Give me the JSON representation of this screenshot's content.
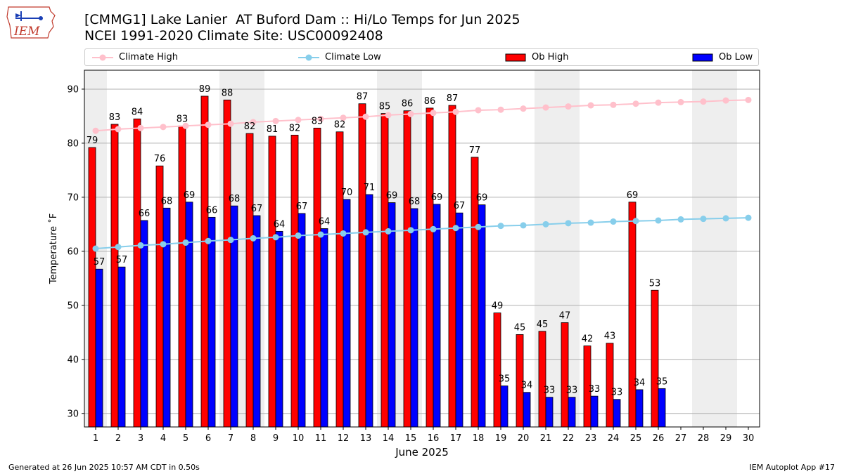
{
  "header": {
    "title_line1": "[CMMG1] Lake Lanier  AT Buford Dam :: Hi/Lo Temps for Jun 2025",
    "title_line2": "NCEI 1991-2020 Climate Site: USC00092408"
  },
  "logo": {
    "text": "IEM"
  },
  "footer": {
    "generated": "Generated at 26 Jun 2025 10:57 AM CDT in 0.50s",
    "app": "IEM Autoplot App #17"
  },
  "chart_data": {
    "type": "bar",
    "xlabel": "June 2025",
    "ylabel": "Temperature ˚F",
    "ylim": [
      27.5,
      93.5
    ],
    "yticks": [
      30,
      40,
      50,
      60,
      70,
      80,
      90
    ],
    "days": [
      1,
      2,
      3,
      4,
      5,
      6,
      7,
      8,
      9,
      10,
      11,
      12,
      13,
      14,
      15,
      16,
      17,
      18,
      19,
      20,
      21,
      22,
      23,
      24,
      25,
      26,
      27,
      28,
      29,
      30
    ],
    "weekend_days": [
      1,
      7,
      8,
      14,
      15,
      21,
      22,
      28,
      29
    ],
    "grid": "horizontal",
    "legend": [
      "Climate High",
      "Climate Low",
      "Ob High",
      "Ob Low"
    ],
    "colors": {
      "ob_high": "#ff0000",
      "ob_low": "#0000ff",
      "climate_high": "#ffc0cb",
      "climate_low": "#87ceeb",
      "weekend_shade": "#eeeeee",
      "grid": "#b0b0b0"
    },
    "series": [
      {
        "name": "Ob High",
        "values": [
          79.2,
          83.5,
          84.5,
          75.8,
          83.2,
          88.7,
          88.0,
          81.8,
          81.3,
          81.5,
          82.8,
          82.1,
          87.3,
          85.5,
          86.0,
          86.5,
          87.0,
          77.4,
          48.6,
          44.6,
          45.2,
          46.8,
          42.5,
          43.0,
          69.1,
          52.8
        ],
        "labels": [
          "79",
          "83",
          "84",
          "76",
          "83",
          "89",
          "88",
          "82",
          "81",
          "82",
          "83",
          "82",
          "87",
          "85",
          "86",
          "86",
          "87",
          "77",
          "49",
          "45",
          "45",
          "47",
          "42",
          "43",
          "69",
          "53"
        ]
      },
      {
        "name": "Ob Low",
        "values": [
          56.7,
          57.1,
          65.7,
          68.0,
          69.1,
          66.3,
          68.4,
          66.6,
          63.7,
          67.0,
          64.2,
          69.6,
          70.5,
          69.0,
          67.9,
          68.7,
          67.1,
          68.6,
          35.1,
          33.9,
          33.0,
          33.0,
          33.2,
          32.6,
          34.4,
          34.6
        ],
        "labels": [
          "57",
          "57",
          "66",
          "68",
          "69",
          "66",
          "68",
          "67",
          "64",
          "67",
          "64",
          "70",
          "71",
          "69",
          "68",
          "69",
          "67",
          "69",
          "35",
          "34",
          "33",
          "33",
          "33",
          "33",
          "34",
          "35"
        ]
      },
      {
        "name": "Climate High",
        "values": [
          82.3,
          82.6,
          82.8,
          83.0,
          83.2,
          83.4,
          83.6,
          83.9,
          84.1,
          84.3,
          84.5,
          84.7,
          84.9,
          85.2,
          85.4,
          85.6,
          85.8,
          86.1,
          86.2,
          86.4,
          86.6,
          86.8,
          87.0,
          87.1,
          87.3,
          87.5,
          87.6,
          87.7,
          87.9,
          88.0
        ]
      },
      {
        "name": "Climate Low",
        "values": [
          60.5,
          60.8,
          61.1,
          61.3,
          61.6,
          61.9,
          62.1,
          62.4,
          62.6,
          62.9,
          63.1,
          63.3,
          63.5,
          63.7,
          63.9,
          64.1,
          64.3,
          64.5,
          64.7,
          64.8,
          65.0,
          65.2,
          65.3,
          65.5,
          65.6,
          65.7,
          65.9,
          66.0,
          66.1,
          66.2
        ]
      }
    ]
  }
}
